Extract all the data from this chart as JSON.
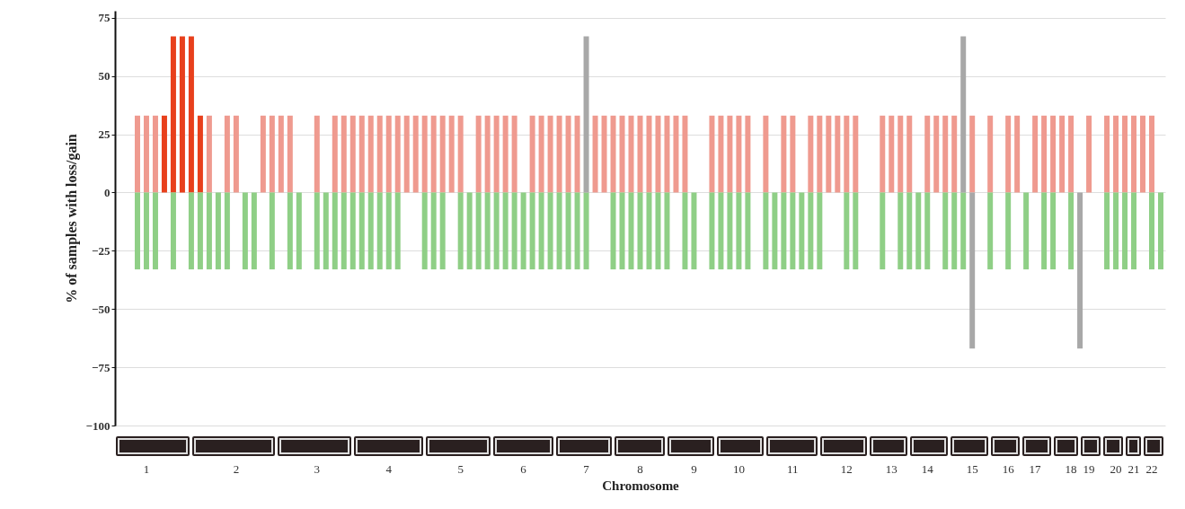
{
  "chart_data": {
    "type": "bar",
    "xlabel": "Chromosome",
    "ylabel": "% of samples with loss/gain",
    "ylim": [
      -100,
      78
    ],
    "yticks": [
      -100,
      -75,
      -50,
      -25,
      0,
      25,
      50,
      75
    ],
    "grid": "y",
    "stacked": true,
    "categories": [
      null,
      null,
      null,
      "1",
      null,
      null,
      null,
      null,
      null,
      null,
      null,
      null,
      null,
      "2",
      null,
      null,
      null,
      null,
      null,
      null,
      null,
      null,
      "3",
      null,
      null,
      null,
      null,
      null,
      null,
      null,
      "4",
      null,
      null,
      null,
      null,
      null,
      null,
      null,
      "5",
      null,
      null,
      null,
      null,
      null,
      null,
      "6",
      null,
      null,
      null,
      null,
      null,
      null,
      "7",
      null,
      null,
      null,
      null,
      null,
      "8",
      null,
      null,
      null,
      null,
      null,
      "9",
      null,
      null,
      null,
      null,
      "10",
      null,
      null,
      null,
      null,
      null,
      "11",
      null,
      null,
      null,
      null,
      null,
      "12",
      null,
      null,
      null,
      null,
      "13",
      null,
      null,
      null,
      "14",
      null,
      null,
      null,
      null,
      "15",
      null,
      null,
      null,
      "16",
      null,
      null,
      "17",
      null,
      null,
      null,
      "18",
      null,
      "19",
      null,
      null,
      "20",
      null,
      "21",
      null,
      "22",
      null
    ],
    "series": [
      {
        "color": "#ef9a8f",
        "values": [
          null,
          null,
          33,
          33,
          33,
          null,
          null,
          null,
          null,
          null,
          33,
          null,
          33,
          33,
          null,
          null,
          33,
          33,
          33,
          33,
          null,
          null,
          33,
          null,
          33,
          33,
          33,
          33,
          33,
          33,
          33,
          33,
          33,
          33,
          33,
          33,
          33,
          33,
          33,
          null,
          33,
          33,
          33,
          33,
          33,
          null,
          33,
          33,
          33,
          33,
          33,
          33,
          null,
          33,
          33,
          33,
          33,
          33,
          33,
          33,
          33,
          33,
          33,
          33,
          null,
          null,
          33,
          33,
          33,
          33,
          33,
          null,
          33,
          null,
          33,
          33,
          null,
          33,
          33,
          33,
          33,
          33,
          33,
          null,
          null,
          33,
          33,
          33,
          33,
          null,
          33,
          33,
          33,
          33,
          null,
          33,
          null,
          33,
          null,
          33,
          33,
          null,
          33,
          33,
          33,
          33,
          33,
          null,
          33,
          null,
          33,
          33,
          33,
          33,
          33,
          33,
          null
        ]
      },
      {
        "color": "#e8401c",
        "values": [
          null,
          null,
          null,
          null,
          null,
          33,
          67,
          67,
          67,
          33,
          null,
          null,
          null,
          null,
          null,
          null,
          null,
          null,
          null,
          null,
          null,
          null,
          null,
          null,
          null,
          null,
          null,
          null,
          null,
          null,
          null,
          null,
          null,
          null,
          null,
          null,
          null,
          null,
          null,
          null,
          null,
          null,
          null,
          null,
          null,
          null,
          null,
          null,
          null,
          null,
          null,
          null,
          null,
          null,
          null,
          null,
          null,
          null,
          null,
          null,
          null,
          null,
          null,
          null,
          null,
          null,
          null,
          null,
          null,
          null,
          null,
          null,
          null,
          null,
          null,
          null,
          null,
          null,
          null,
          null,
          null,
          null,
          null,
          null,
          null,
          null,
          null,
          null,
          null,
          null,
          null,
          null,
          null,
          null,
          null,
          null,
          null,
          null,
          null,
          null,
          null,
          null,
          null,
          null,
          null,
          null,
          null,
          null,
          null,
          null,
          null,
          null,
          null,
          null,
          null,
          null,
          null
        ]
      },
      {
        "color": "#8fcf86",
        "values": [
          null,
          null,
          -33,
          -33,
          -33,
          null,
          -33,
          null,
          -33,
          -33,
          -33,
          -33,
          -33,
          null,
          -33,
          -33,
          null,
          -33,
          null,
          -33,
          -33,
          null,
          -33,
          -33,
          -33,
          -33,
          -33,
          -33,
          -33,
          -33,
          -33,
          -33,
          null,
          null,
          -33,
          -33,
          -33,
          null,
          -33,
          -33,
          -33,
          -33,
          -33,
          -33,
          -33,
          -33,
          -33,
          -33,
          -33,
          -33,
          -33,
          -33,
          -33,
          null,
          null,
          -33,
          -33,
          -33,
          -33,
          -33,
          -33,
          -33,
          null,
          -33,
          -33,
          null,
          -33,
          -33,
          -33,
          -33,
          -33,
          null,
          -33,
          -33,
          -33,
          -33,
          -33,
          -33,
          -33,
          null,
          null,
          -33,
          -33,
          null,
          null,
          -33,
          null,
          -33,
          -33,
          -33,
          -33,
          null,
          -33,
          -33,
          -33,
          null,
          null,
          -33,
          null,
          -33,
          null,
          -33,
          null,
          -33,
          -33,
          null,
          -33,
          null,
          null,
          null,
          -33,
          -33,
          -33,
          -33,
          null,
          -33,
          -33
        ]
      },
      {
        "color": "#a8a8a8",
        "values": [
          null,
          null,
          null,
          null,
          null,
          null,
          null,
          null,
          null,
          null,
          null,
          null,
          null,
          null,
          null,
          null,
          null,
          null,
          null,
          null,
          null,
          null,
          null,
          null,
          null,
          null,
          null,
          null,
          null,
          null,
          null,
          null,
          null,
          null,
          null,
          null,
          null,
          null,
          null,
          null,
          null,
          null,
          null,
          null,
          null,
          null,
          null,
          null,
          null,
          null,
          null,
          null,
          67,
          null,
          null,
          null,
          null,
          null,
          null,
          null,
          null,
          null,
          null,
          null,
          null,
          null,
          null,
          null,
          null,
          null,
          null,
          null,
          null,
          null,
          null,
          null,
          null,
          null,
          null,
          null,
          null,
          null,
          null,
          null,
          null,
          null,
          null,
          null,
          null,
          null,
          null,
          null,
          null,
          null,
          67,
          -67,
          null,
          null,
          null,
          null,
          null,
          null,
          null,
          null,
          null,
          null,
          null,
          -67,
          null,
          null,
          null,
          null,
          null,
          null,
          null,
          null,
          null
        ]
      }
    ]
  }
}
